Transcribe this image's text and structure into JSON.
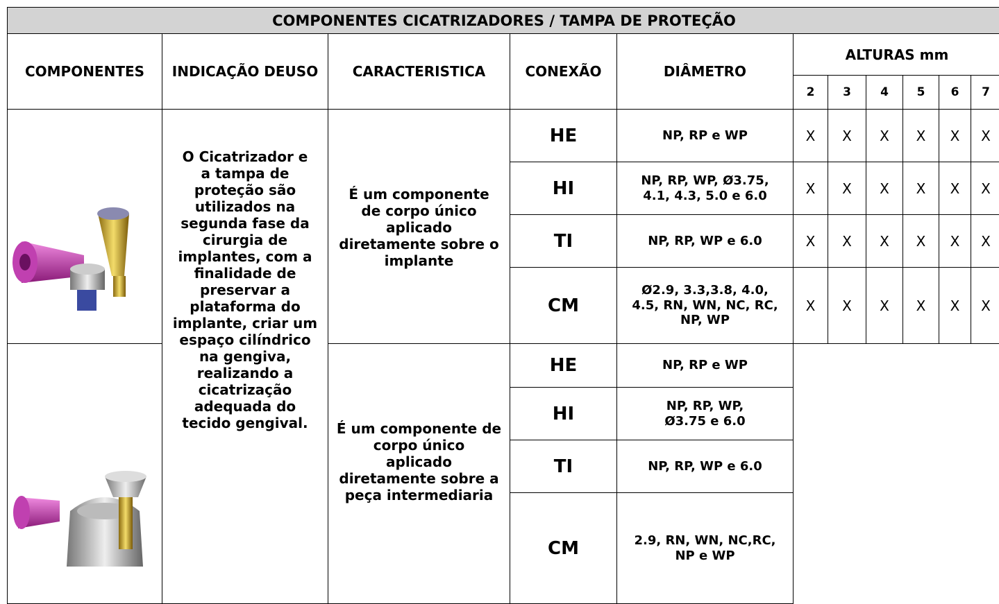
{
  "header": {
    "title": "COMPONENTES CICATRIZADORES  / TAMPA DE PROTEÇÃO",
    "columns": [
      "COMPONENTES",
      "INDICAÇÃO DEUSO",
      "CARACTERISTICA",
      "CONEXÃO",
      "DIÂMETRO"
    ],
    "heights_title": "ALTURAS mm",
    "heights": [
      "2",
      "3",
      "4",
      "5",
      "6",
      "7"
    ]
  },
  "indication": [
    "O Cicatrizador e",
    "a tampa de",
    "proteção são",
    "utilizados na",
    "segunda fase da",
    "cirurgia de",
    "implantes, com a",
    "finalidade de",
    "preservar a",
    "plataforma do",
    "implante, criar um",
    "espaço cilíndrico",
    "na gengiva,",
    "realizando a",
    "cicatrização",
    "adequada do",
    "tecido gengival."
  ],
  "groups": [
    {
      "characteristic": [
        "É um componente",
        "de corpo único",
        "aplicado",
        "diretamente sobre o",
        "implante"
      ],
      "rows": [
        {
          "connection": "HE",
          "diameter": [
            "NP, RP e WP"
          ],
          "marks": [
            "X",
            "X",
            "X",
            "X",
            "X",
            "X"
          ]
        },
        {
          "connection": "HI",
          "diameter": [
            "NP, RP, WP, Ø3.75,",
            "4.1, 4.3, 5.0 e 6.0"
          ],
          "marks": [
            "X",
            "X",
            "X",
            "X",
            "X",
            "X"
          ]
        },
        {
          "connection": "TI",
          "diameter": [
            "NP, RP, WP e 6.0"
          ],
          "marks": [
            "X",
            "X",
            "X",
            "X",
            "X",
            "X"
          ]
        },
        {
          "connection": "CM",
          "diameter": [
            "Ø2.9, 3.3,3.8, 4.0,",
            "4.5, RN, WN, NC, RC,",
            "NP, WP"
          ],
          "marks": [
            "X",
            "X",
            "X",
            "X",
            "X",
            "X"
          ]
        }
      ]
    },
    {
      "characteristic": [
        "É um componente de",
        "corpo único",
        "aplicado",
        "diretamente sobre a",
        "peça intermediaria"
      ],
      "rows": [
        {
          "connection": "HE",
          "diameter": [
            "NP, RP e WP"
          ]
        },
        {
          "connection": "HI",
          "diameter": [
            "NP, RP, WP,",
            "Ø3.75 e 6.0"
          ]
        },
        {
          "connection": "TI",
          "diameter": [
            "NP, RP, WP e 6.0"
          ]
        },
        {
          "connection": "CM",
          "diameter": [
            "2.9, RN, WN, NC,RC,",
            "NP e WP"
          ]
        }
      ]
    }
  ]
}
